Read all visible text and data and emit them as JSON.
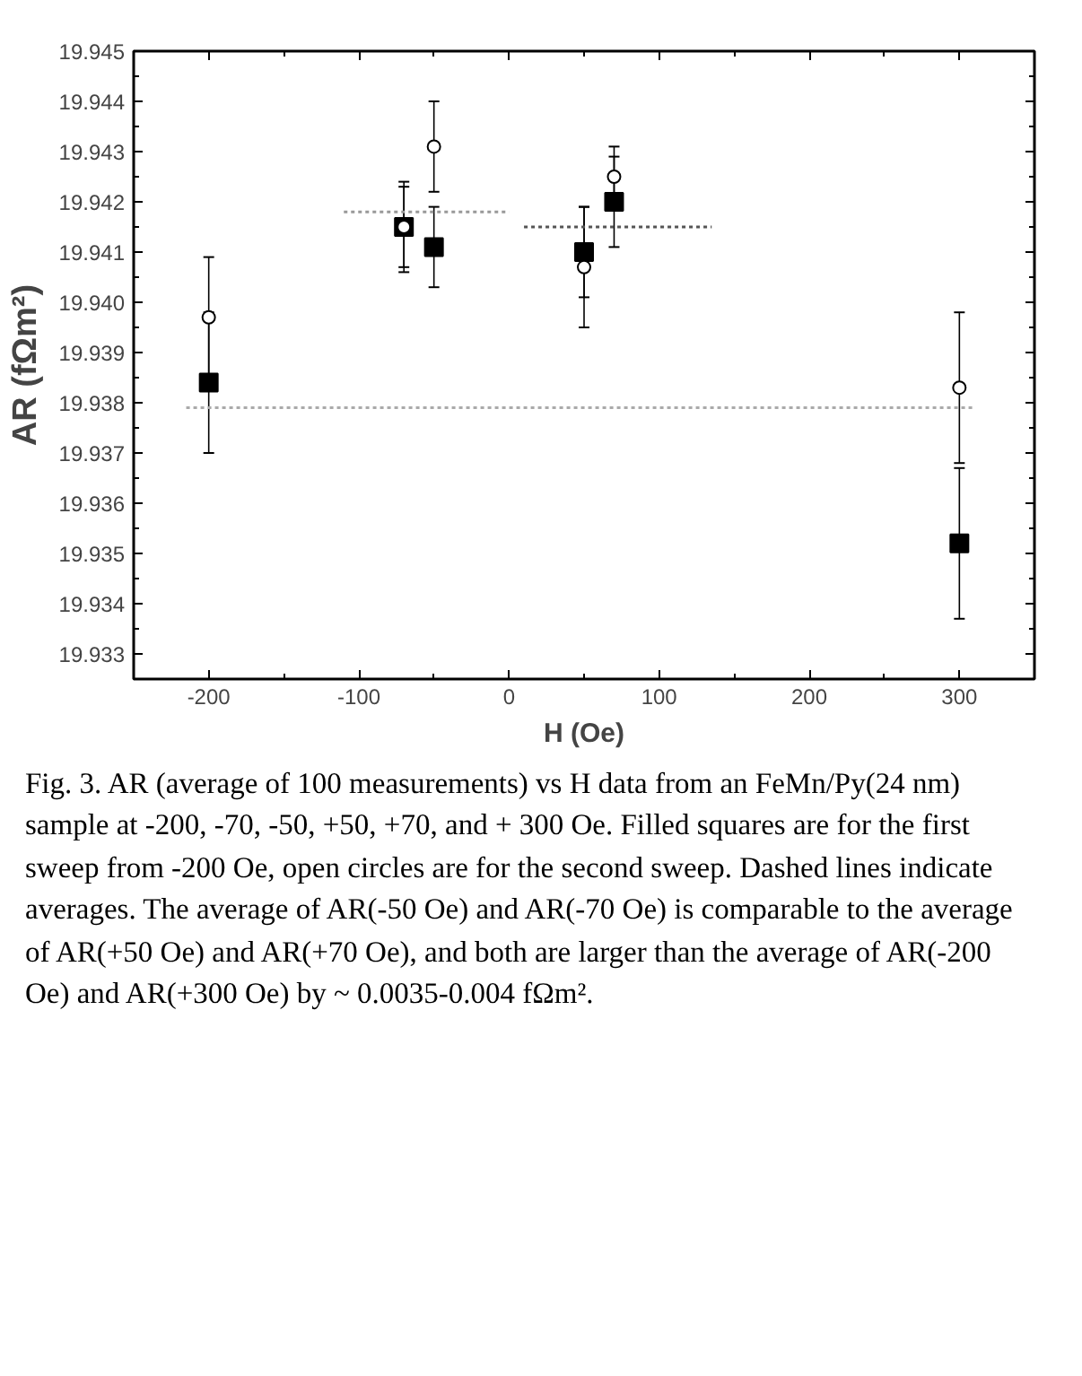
{
  "chart_data": {
    "type": "scatter",
    "xlabel": "H (Oe)",
    "ylabel": "AR (fΩm²)",
    "x": [
      -200,
      -70,
      -50,
      50,
      70,
      300
    ],
    "series": [
      {
        "color": "#000000",
        "marker": "square",
        "values": [
          19.9384,
          19.9415,
          19.9411,
          19.941,
          19.942,
          19.9352
        ],
        "errors": [
          0.0014,
          0.0008,
          0.0008,
          0.0009,
          0.0009,
          0.0015
        ]
      },
      {
        "color": "#000000",
        "marker": "circle",
        "values": [
          19.9397,
          19.9415,
          19.9431,
          19.9407,
          19.9425,
          19.9383
        ],
        "errors": [
          0.0012,
          0.0009,
          0.0009,
          0.0012,
          0.0006,
          0.0015
        ]
      },
      {
        "type": "line",
        "color": "#999999",
        "line_style": "dotted",
        "x": [
          -110,
          0
        ],
        "values": [
          19.9418,
          19.9418
        ]
      },
      {
        "type": "line",
        "color": "#555555",
        "line_style": "dotted",
        "x": [
          10,
          135
        ],
        "values": [
          19.9415,
          19.9415
        ]
      },
      {
        "type": "line",
        "color": "#aaaaaa",
        "line_style": "dotted",
        "x": [
          -215,
          310
        ],
        "values": [
          19.9379,
          19.9379
        ]
      }
    ],
    "xlim": [
      -250,
      350
    ],
    "xticks": [
      -200,
      -100,
      0,
      100,
      200,
      300
    ],
    "ylim": [
      19.9325,
      19.945
    ],
    "yticks": [
      19.933,
      19.934,
      19.935,
      19.936,
      19.937,
      19.938,
      19.939,
      {
        "value": 19.94,
        "label": "19.940"
      },
      19.941,
      19.942,
      19.943,
      19.944,
      19.945
    ],
    "grid": false,
    "annotations": [
      "Fig. 3.  AR (average of 100 measurements) vs H data from an FeMn/Py(24 nm) sample at  -200, -70, -50, +50, +70, and + 300 Oe.  Filled squares are for the first sweep from  -200 Oe, open circles are for the second sweep. Dashed lines indicate averages.  The average of AR(-50 Oe) and AR(-70 Oe) is comparable to the average of AR(+50 Oe) and AR(+70 Oe), and both are larger than the average of AR(-200 Oe) and AR(+300 Oe) by ~ 0.0035-0.004 fΩm²."
    ]
  }
}
